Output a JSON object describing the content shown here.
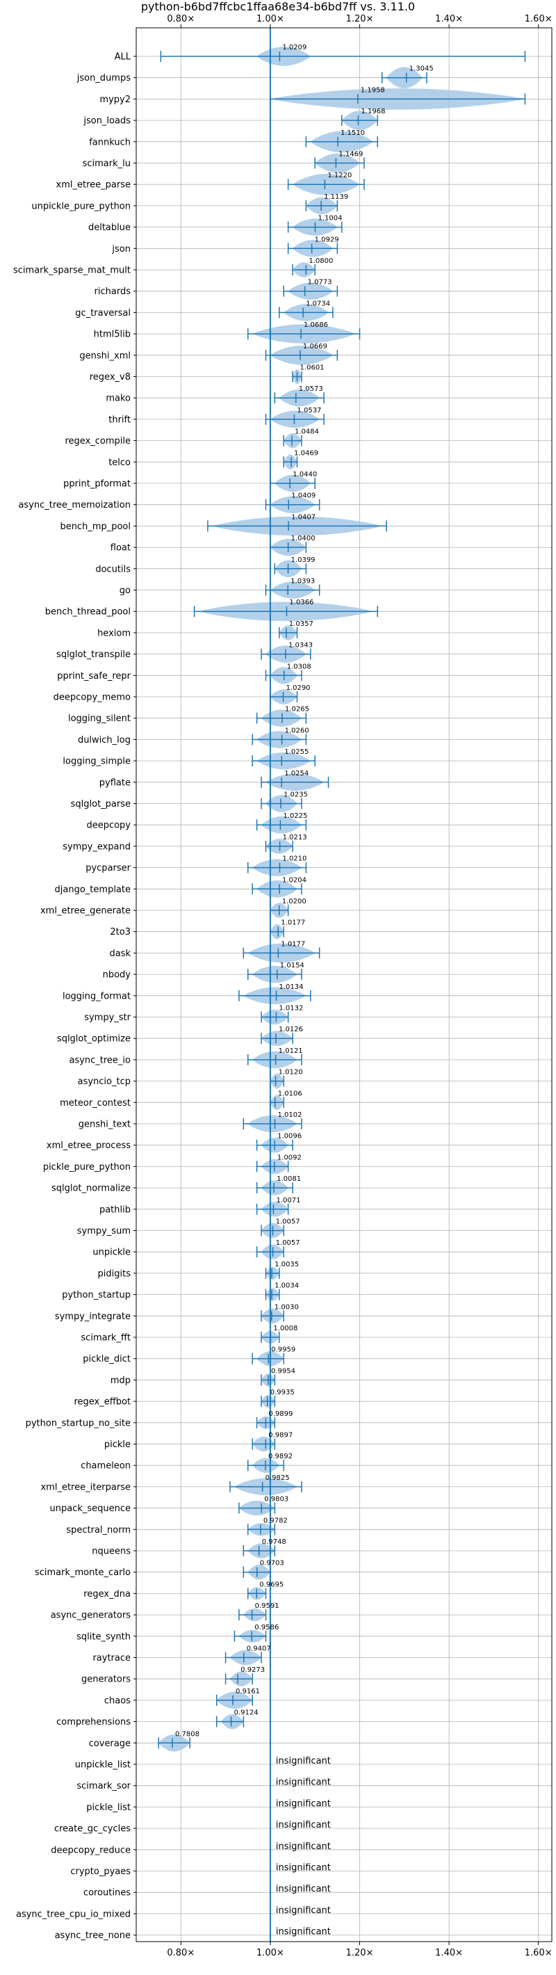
{
  "chart_data": {
    "type": "violin",
    "title": "python-b6bd7ffcbc1ffaa68e34-b6bd7ff vs. 3.11.0",
    "xlim": [
      0.7,
      1.63
    ],
    "x_ticks": [
      0.8,
      1.0,
      1.2,
      1.4,
      1.6
    ],
    "x_tick_labels": [
      "0.80×",
      "1.00×",
      "1.20×",
      "1.40×",
      "1.60×"
    ],
    "reference_line": 1.0,
    "grid": true,
    "color": "#1f77b4",
    "violin_color": "#a6c8e6",
    "insignificant_label": "insignificant",
    "benchmarks": [
      {
        "name": "ALL",
        "value": 1.0209,
        "label": "1.0209",
        "min": 0.755,
        "max": 1.57,
        "vmin": 0.97,
        "vmax": 1.09,
        "w": 0.45
      },
      {
        "name": "json_dumps",
        "value": 1.3045,
        "label": "1.3045",
        "min": 1.25,
        "max": 1.35,
        "vmin": 1.26,
        "vmax": 1.34,
        "w": 0.5
      },
      {
        "name": "mypy2",
        "value": 1.1958,
        "label": "1.1958",
        "min": 1.0,
        "max": 1.57,
        "vmin": 1.0,
        "vmax": 1.57,
        "w": 0.5
      },
      {
        "name": "json_loads",
        "value": 1.1968,
        "label": "1.1968",
        "min": 1.16,
        "max": 1.24,
        "vmin": 1.16,
        "vmax": 1.24,
        "w": 0.45
      },
      {
        "name": "fannkuch",
        "value": 1.151,
        "label": "1.1510",
        "min": 1.08,
        "max": 1.24,
        "vmin": 1.09,
        "vmax": 1.23,
        "w": 0.5
      },
      {
        "name": "scimark_lu",
        "value": 1.1469,
        "label": "1.1469",
        "min": 1.1,
        "max": 1.21,
        "vmin": 1.1,
        "vmax": 1.2,
        "w": 0.45
      },
      {
        "name": "xml_etree_parse",
        "value": 1.122,
        "label": "1.1220",
        "min": 1.04,
        "max": 1.21,
        "vmin": 1.05,
        "vmax": 1.2,
        "w": 0.5
      },
      {
        "name": "unpickle_pure_python",
        "value": 1.1139,
        "label": "1.1139",
        "min": 1.08,
        "max": 1.15,
        "vmin": 1.08,
        "vmax": 1.15,
        "w": 0.4
      },
      {
        "name": "deltablue",
        "value": 1.1004,
        "label": "1.1004",
        "min": 1.04,
        "max": 1.16,
        "vmin": 1.05,
        "vmax": 1.15,
        "w": 0.4
      },
      {
        "name": "json",
        "value": 1.0929,
        "label": "1.0929",
        "min": 1.04,
        "max": 1.15,
        "vmin": 1.05,
        "vmax": 1.14,
        "w": 0.4
      },
      {
        "name": "scimark_sparse_mat_mult",
        "value": 1.08,
        "label": "1.0800",
        "min": 1.05,
        "max": 1.1,
        "vmin": 1.05,
        "vmax": 1.1,
        "w": 0.35
      },
      {
        "name": "richards",
        "value": 1.0773,
        "label": "1.0773",
        "min": 1.03,
        "max": 1.15,
        "vmin": 1.04,
        "vmax": 1.14,
        "w": 0.4
      },
      {
        "name": "gc_traversal",
        "value": 1.0734,
        "label": "1.0734",
        "min": 1.02,
        "max": 1.14,
        "vmin": 1.03,
        "vmax": 1.13,
        "w": 0.4
      },
      {
        "name": "html5lib",
        "value": 1.0686,
        "label": "1.0686",
        "min": 0.95,
        "max": 1.2,
        "vmin": 0.96,
        "vmax": 1.19,
        "w": 0.45
      },
      {
        "name": "genshi_xml",
        "value": 1.0669,
        "label": "1.0669",
        "min": 0.99,
        "max": 1.15,
        "vmin": 1.0,
        "vmax": 1.14,
        "w": 0.45
      },
      {
        "name": "regex_v8",
        "value": 1.0601,
        "label": "1.0601",
        "min": 1.05,
        "max": 1.07,
        "vmin": 1.05,
        "vmax": 1.07,
        "w": 0.35
      },
      {
        "name": "mako",
        "value": 1.0573,
        "label": "1.0573",
        "min": 1.01,
        "max": 1.12,
        "vmin": 1.02,
        "vmax": 1.11,
        "w": 0.4
      },
      {
        "name": "thrift",
        "value": 1.0537,
        "label": "1.0537",
        "min": 0.99,
        "max": 1.12,
        "vmin": 1.0,
        "vmax": 1.11,
        "w": 0.4
      },
      {
        "name": "regex_compile",
        "value": 1.0484,
        "label": "1.0484",
        "min": 1.03,
        "max": 1.07,
        "vmin": 1.03,
        "vmax": 1.07,
        "w": 0.35
      },
      {
        "name": "telco",
        "value": 1.0469,
        "label": "1.0469",
        "min": 1.03,
        "max": 1.06,
        "vmin": 1.03,
        "vmax": 1.06,
        "w": 0.35
      },
      {
        "name": "pprint_pformat",
        "value": 1.044,
        "label": "1.0440",
        "min": 1.0,
        "max": 1.1,
        "vmin": 1.01,
        "vmax": 1.09,
        "w": 0.4
      },
      {
        "name": "async_tree_memoization",
        "value": 1.0409,
        "label": "1.0409",
        "min": 0.99,
        "max": 1.11,
        "vmin": 1.0,
        "vmax": 1.1,
        "w": 0.4
      },
      {
        "name": "bench_mp_pool",
        "value": 1.0407,
        "label": "1.0407",
        "min": 0.86,
        "max": 1.26,
        "vmin": 0.87,
        "vmax": 1.25,
        "w": 0.45
      },
      {
        "name": "float",
        "value": 1.04,
        "label": "1.0400",
        "min": 1.0,
        "max": 1.08,
        "vmin": 1.0,
        "vmax": 1.08,
        "w": 0.4
      },
      {
        "name": "docutils",
        "value": 1.0399,
        "label": "1.0399",
        "min": 1.01,
        "max": 1.08,
        "vmin": 1.01,
        "vmax": 1.07,
        "w": 0.4
      },
      {
        "name": "go",
        "value": 1.0393,
        "label": "1.0393",
        "min": 0.99,
        "max": 1.11,
        "vmin": 1.0,
        "vmax": 1.1,
        "w": 0.4
      },
      {
        "name": "bench_thread_pool",
        "value": 1.0366,
        "label": "1.0366",
        "min": 0.83,
        "max": 1.24,
        "vmin": 0.84,
        "vmax": 1.23,
        "w": 0.45
      },
      {
        "name": "hexiom",
        "value": 1.0357,
        "label": "1.0357",
        "min": 1.02,
        "max": 1.06,
        "vmin": 1.02,
        "vmax": 1.06,
        "w": 0.35
      },
      {
        "name": "sqlglot_transpile",
        "value": 1.0343,
        "label": "1.0343",
        "min": 0.98,
        "max": 1.09,
        "vmin": 0.99,
        "vmax": 1.08,
        "w": 0.4
      },
      {
        "name": "pprint_safe_repr",
        "value": 1.0308,
        "label": "1.0308",
        "min": 0.99,
        "max": 1.07,
        "vmin": 1.0,
        "vmax": 1.06,
        "w": 0.4
      },
      {
        "name": "deepcopy_memo",
        "value": 1.029,
        "label": "1.0290",
        "min": 1.0,
        "max": 1.06,
        "vmin": 1.0,
        "vmax": 1.06,
        "w": 0.35
      },
      {
        "name": "logging_silent",
        "value": 1.0265,
        "label": "1.0265",
        "min": 0.97,
        "max": 1.08,
        "vmin": 0.98,
        "vmax": 1.07,
        "w": 0.4
      },
      {
        "name": "dulwich_log",
        "value": 1.026,
        "label": "1.0260",
        "min": 0.96,
        "max": 1.08,
        "vmin": 0.97,
        "vmax": 1.07,
        "w": 0.4
      },
      {
        "name": "logging_simple",
        "value": 1.0255,
        "label": "1.0255",
        "min": 0.96,
        "max": 1.1,
        "vmin": 0.97,
        "vmax": 1.09,
        "w": 0.4
      },
      {
        "name": "pyflate",
        "value": 1.0254,
        "label": "1.0254",
        "min": 0.98,
        "max": 1.13,
        "vmin": 0.99,
        "vmax": 1.12,
        "w": 0.4
      },
      {
        "name": "sqlglot_parse",
        "value": 1.0235,
        "label": "1.0235",
        "min": 0.98,
        "max": 1.07,
        "vmin": 0.99,
        "vmax": 1.06,
        "w": 0.4
      },
      {
        "name": "deepcopy",
        "value": 1.0225,
        "label": "1.0225",
        "min": 0.97,
        "max": 1.08,
        "vmin": 0.98,
        "vmax": 1.07,
        "w": 0.4
      },
      {
        "name": "sympy_expand",
        "value": 1.0213,
        "label": "1.0213",
        "min": 0.99,
        "max": 1.05,
        "vmin": 0.99,
        "vmax": 1.05,
        "w": 0.35
      },
      {
        "name": "pycparser",
        "value": 1.021,
        "label": "1.0210",
        "min": 0.95,
        "max": 1.08,
        "vmin": 0.96,
        "vmax": 1.07,
        "w": 0.4
      },
      {
        "name": "django_template",
        "value": 1.0204,
        "label": "1.0204",
        "min": 0.96,
        "max": 1.07,
        "vmin": 0.97,
        "vmax": 1.06,
        "w": 0.4
      },
      {
        "name": "xml_etree_generate",
        "value": 1.02,
        "label": "1.0200",
        "min": 1.0,
        "max": 1.04,
        "vmin": 1.0,
        "vmax": 1.04,
        "w": 0.35
      },
      {
        "name": "2to3",
        "value": 1.0177,
        "label": "1.0177",
        "min": 1.0,
        "max": 1.03,
        "vmin": 1.0,
        "vmax": 1.03,
        "w": 0.35
      },
      {
        "name": "dask",
        "value": 1.0177,
        "label": "1.0177",
        "min": 0.94,
        "max": 1.11,
        "vmin": 0.95,
        "vmax": 1.1,
        "w": 0.45
      },
      {
        "name": "nbody",
        "value": 1.0154,
        "label": "1.0154",
        "min": 0.95,
        "max": 1.07,
        "vmin": 0.96,
        "vmax": 1.06,
        "w": 0.4
      },
      {
        "name": "logging_format",
        "value": 1.0134,
        "label": "1.0134",
        "min": 0.93,
        "max": 1.09,
        "vmin": 0.94,
        "vmax": 1.08,
        "w": 0.4
      },
      {
        "name": "sympy_str",
        "value": 1.0132,
        "label": "1.0132",
        "min": 0.98,
        "max": 1.04,
        "vmin": 0.98,
        "vmax": 1.04,
        "w": 0.35
      },
      {
        "name": "sqlglot_optimize",
        "value": 1.0126,
        "label": "1.0126",
        "min": 0.98,
        "max": 1.05,
        "vmin": 0.98,
        "vmax": 1.05,
        "w": 0.35
      },
      {
        "name": "async_tree_io",
        "value": 1.0121,
        "label": "1.0121",
        "min": 0.95,
        "max": 1.07,
        "vmin": 0.96,
        "vmax": 1.06,
        "w": 0.4
      },
      {
        "name": "asyncio_tcp",
        "value": 1.012,
        "label": "1.0120",
        "min": 1.0,
        "max": 1.03,
        "vmin": 1.0,
        "vmax": 1.03,
        "w": 0.35
      },
      {
        "name": "meteor_contest",
        "value": 1.0106,
        "label": "1.0106",
        "min": 1.0,
        "max": 1.03,
        "vmin": 1.0,
        "vmax": 1.03,
        "w": 0.35
      },
      {
        "name": "genshi_text",
        "value": 1.0102,
        "label": "1.0102",
        "min": 0.94,
        "max": 1.07,
        "vmin": 0.95,
        "vmax": 1.06,
        "w": 0.4
      },
      {
        "name": "xml_etree_process",
        "value": 1.0096,
        "label": "1.0096",
        "min": 0.97,
        "max": 1.05,
        "vmin": 0.98,
        "vmax": 1.04,
        "w": 0.35
      },
      {
        "name": "pickle_pure_python",
        "value": 1.0092,
        "label": "1.0092",
        "min": 0.97,
        "max": 1.04,
        "vmin": 0.98,
        "vmax": 1.04,
        "w": 0.35
      },
      {
        "name": "sqlglot_normalize",
        "value": 1.0081,
        "label": "1.0081",
        "min": 0.97,
        "max": 1.05,
        "vmin": 0.98,
        "vmax": 1.04,
        "w": 0.35
      },
      {
        "name": "pathlib",
        "value": 1.0071,
        "label": "1.0071",
        "min": 0.97,
        "max": 1.04,
        "vmin": 0.98,
        "vmax": 1.04,
        "w": 0.35
      },
      {
        "name": "sympy_sum",
        "value": 1.0057,
        "label": "1.0057",
        "min": 0.98,
        "max": 1.03,
        "vmin": 0.98,
        "vmax": 1.03,
        "w": 0.35
      },
      {
        "name": "unpickle",
        "value": 1.0057,
        "label": "1.0057",
        "min": 0.97,
        "max": 1.03,
        "vmin": 0.98,
        "vmax": 1.03,
        "w": 0.35
      },
      {
        "name": "pidigits",
        "value": 1.0035,
        "label": "1.0035",
        "min": 0.99,
        "max": 1.02,
        "vmin": 0.99,
        "vmax": 1.02,
        "w": 0.3
      },
      {
        "name": "python_startup",
        "value": 1.0034,
        "label": "1.0034",
        "min": 0.99,
        "max": 1.02,
        "vmin": 0.99,
        "vmax": 1.02,
        "w": 0.3
      },
      {
        "name": "sympy_integrate",
        "value": 1.003,
        "label": "1.0030",
        "min": 0.98,
        "max": 1.03,
        "vmin": 0.98,
        "vmax": 1.03,
        "w": 0.35
      },
      {
        "name": "scimark_fft",
        "value": 1.0008,
        "label": "1.0008",
        "min": 0.98,
        "max": 1.02,
        "vmin": 0.98,
        "vmax": 1.02,
        "w": 0.3
      },
      {
        "name": "pickle_dict",
        "value": 0.9959,
        "label": "0.9959",
        "min": 0.96,
        "max": 1.03,
        "vmin": 0.97,
        "vmax": 1.03,
        "w": 0.35
      },
      {
        "name": "mdp",
        "value": 0.9954,
        "label": "0.9954",
        "min": 0.98,
        "max": 1.01,
        "vmin": 0.98,
        "vmax": 1.01,
        "w": 0.3
      },
      {
        "name": "regex_effbot",
        "value": 0.9935,
        "label": "0.9935",
        "min": 0.98,
        "max": 1.01,
        "vmin": 0.98,
        "vmax": 1.01,
        "w": 0.3
      },
      {
        "name": "python_startup_no_site",
        "value": 0.9899,
        "label": "0.9899",
        "min": 0.97,
        "max": 1.01,
        "vmin": 0.97,
        "vmax": 1.01,
        "w": 0.3
      },
      {
        "name": "pickle",
        "value": 0.9897,
        "label": "0.9897",
        "min": 0.96,
        "max": 1.01,
        "vmin": 0.96,
        "vmax": 1.01,
        "w": 0.35
      },
      {
        "name": "chameleon",
        "value": 0.9892,
        "label": "0.9892",
        "min": 0.95,
        "max": 1.03,
        "vmin": 0.96,
        "vmax": 1.02,
        "w": 0.35
      },
      {
        "name": "xml_etree_iterparse",
        "value": 0.9825,
        "label": "0.9825",
        "min": 0.91,
        "max": 1.07,
        "vmin": 0.92,
        "vmax": 1.06,
        "w": 0.4
      },
      {
        "name": "unpack_sequence",
        "value": 0.9803,
        "label": "0.9803",
        "min": 0.93,
        "max": 1.01,
        "vmin": 0.93,
        "vmax": 1.01,
        "w": 0.35
      },
      {
        "name": "spectral_norm",
        "value": 0.9782,
        "label": "0.9782",
        "min": 0.95,
        "max": 1.01,
        "vmin": 0.95,
        "vmax": 1.01,
        "w": 0.3
      },
      {
        "name": "nqueens",
        "value": 0.9748,
        "label": "0.9748",
        "min": 0.94,
        "max": 1.01,
        "vmin": 0.95,
        "vmax": 1.01,
        "w": 0.35
      },
      {
        "name": "scimark_monte_carlo",
        "value": 0.9703,
        "label": "0.9703",
        "min": 0.94,
        "max": 1.0,
        "vmin": 0.95,
        "vmax": 1.0,
        "w": 0.35
      },
      {
        "name": "regex_dna",
        "value": 0.9695,
        "label": "0.9695",
        "min": 0.95,
        "max": 0.99,
        "vmin": 0.95,
        "vmax": 0.99,
        "w": 0.3
      },
      {
        "name": "async_generators",
        "value": 0.9591,
        "label": "0.9591",
        "min": 0.93,
        "max": 0.99,
        "vmin": 0.94,
        "vmax": 0.99,
        "w": 0.3
      },
      {
        "name": "sqlite_synth",
        "value": 0.9586,
        "label": "0.9586",
        "min": 0.92,
        "max": 0.99,
        "vmin": 0.93,
        "vmax": 0.99,
        "w": 0.3
      },
      {
        "name": "raytrace",
        "value": 0.9407,
        "label": "0.9407",
        "min": 0.9,
        "max": 0.98,
        "vmin": 0.91,
        "vmax": 0.98,
        "w": 0.35
      },
      {
        "name": "generators",
        "value": 0.9273,
        "label": "0.9273",
        "min": 0.9,
        "max": 0.96,
        "vmin": 0.91,
        "vmax": 0.96,
        "w": 0.35
      },
      {
        "name": "chaos",
        "value": 0.9161,
        "label": "0.9161",
        "min": 0.88,
        "max": 0.96,
        "vmin": 0.88,
        "vmax": 0.96,
        "w": 0.4
      },
      {
        "name": "comprehensions",
        "value": 0.9124,
        "label": "0.9124",
        "min": 0.88,
        "max": 0.94,
        "vmin": 0.89,
        "vmax": 0.94,
        "w": 0.35
      },
      {
        "name": "coverage",
        "value": 0.7808,
        "label": "0.7808",
        "min": 0.75,
        "max": 0.82,
        "vmin": 0.75,
        "vmax": 0.82,
        "w": 0.4
      },
      {
        "name": "unpickle_list",
        "insignificant": true
      },
      {
        "name": "scimark_sor",
        "insignificant": true
      },
      {
        "name": "pickle_list",
        "insignificant": true
      },
      {
        "name": "create_gc_cycles",
        "insignificant": true
      },
      {
        "name": "deepcopy_reduce",
        "insignificant": true
      },
      {
        "name": "crypto_pyaes",
        "insignificant": true
      },
      {
        "name": "coroutines",
        "insignificant": true
      },
      {
        "name": "async_tree_cpu_io_mixed",
        "insignificant": true
      },
      {
        "name": "async_tree_none",
        "insignificant": true
      }
    ]
  }
}
